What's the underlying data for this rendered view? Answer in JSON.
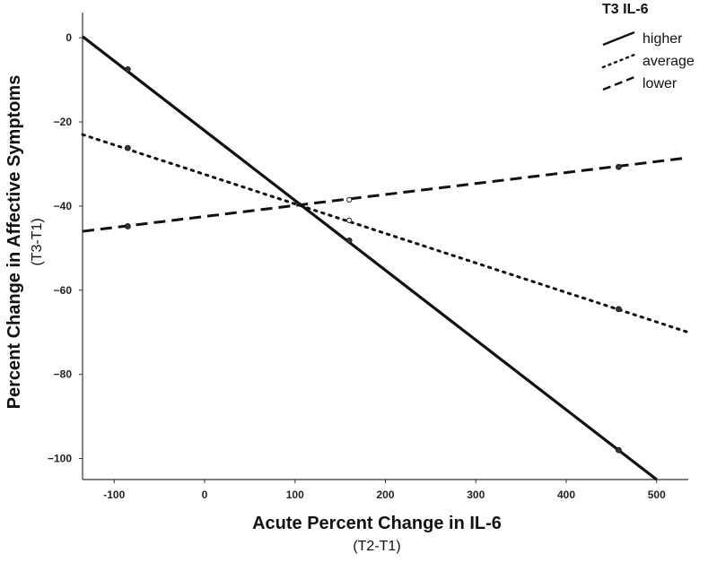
{
  "chart_data": {
    "type": "line",
    "xlabel": "Acute Percent Change in IL-6",
    "xlabel_sub": "(T2-T1)",
    "ylabel": "Percent Change in Affective Symptoms",
    "ylabel_sub": "(T3-T1)",
    "xlim": [
      -135,
      535
    ],
    "ylim": [
      -105,
      6
    ],
    "xticks": [
      -100,
      0,
      100,
      200,
      300,
      400,
      500
    ],
    "yticks": [
      0,
      -20,
      -40,
      -60,
      -80,
      -100
    ],
    "grid": false,
    "legend": {
      "title": "T3 IL-6",
      "position": "top-right"
    },
    "series": [
      {
        "name": "higher",
        "style": "solid",
        "line": [
          [
            -135,
            0.3
          ],
          [
            500,
            -105
          ]
        ],
        "points": [
          [
            -85,
            -7.5
          ],
          [
            160,
            -48.2
          ],
          [
            458,
            -98
          ]
        ],
        "open_points": []
      },
      {
        "name": "average",
        "style": "dotted",
        "line": [
          [
            -135,
            -23
          ],
          [
            535,
            -70
          ]
        ],
        "points": [
          [
            -85,
            -26.2
          ],
          [
            458,
            -64.5
          ]
        ],
        "open_points": [
          [
            160,
            -43.4
          ]
        ]
      },
      {
        "name": "lower",
        "style": "dashed",
        "line": [
          [
            -135,
            -46
          ],
          [
            535,
            -28.5
          ]
        ],
        "points": [
          [
            -85,
            -44.8
          ],
          [
            458,
            -30.7
          ]
        ],
        "open_points": [
          [
            160,
            -38.5
          ]
        ]
      }
    ]
  }
}
